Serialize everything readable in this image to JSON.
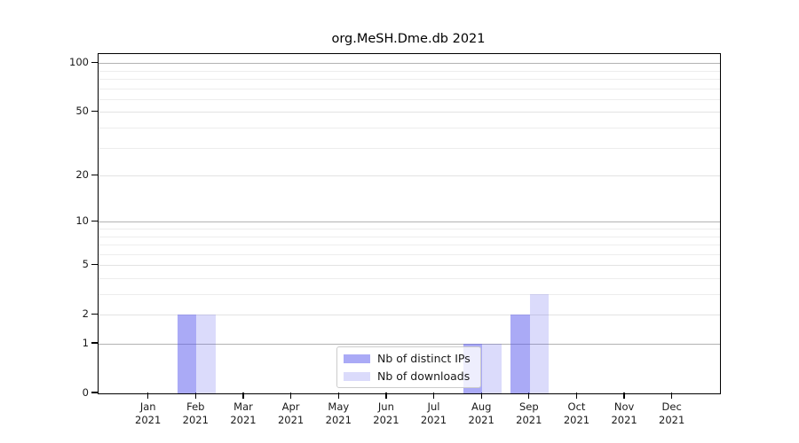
{
  "figure": {
    "background": "#ffffff"
  },
  "chart_data": {
    "type": "bar",
    "title": "org.MeSH.Dme.db 2021",
    "year_label": "2021",
    "categories": [
      "Jan",
      "Feb",
      "Mar",
      "Apr",
      "May",
      "Jun",
      "Jul",
      "Aug",
      "Sep",
      "Oct",
      "Nov",
      "Dec"
    ],
    "series": [
      {
        "name": "Nb of distinct IPs",
        "fill": "rgba(85,85,238,0.50)",
        "solid_color": "#aaaaf6",
        "values": [
          0,
          2,
          0,
          0,
          0,
          0,
          0,
          1,
          2,
          0,
          0,
          0
        ]
      },
      {
        "name": "Nb of downloads",
        "fill": "rgba(85,85,238,0.21)",
        "solid_color": "#dbdbfb",
        "values": [
          0,
          2,
          0,
          0,
          0,
          0,
          0,
          1,
          3,
          0,
          0,
          0
        ]
      }
    ],
    "y_axis": {
      "scale": "log10(1+value)",
      "ticks": [
        0,
        1,
        2,
        5,
        10,
        20,
        50,
        100
      ],
      "ylim": [
        0,
        113
      ]
    },
    "x_axis": {
      "tick_line1": [
        "Jan",
        "Feb",
        "Mar",
        "Apr",
        "May",
        "Jun",
        "Jul",
        "Aug",
        "Sep",
        "Oct",
        "Nov",
        "Dec"
      ],
      "tick_line2": "2021"
    },
    "grid": {
      "major": [
        1,
        10,
        100
      ],
      "mid": [
        2,
        5,
        20,
        50
      ],
      "minor": [
        3,
        4,
        6,
        7,
        8,
        9,
        30,
        40,
        60,
        70,
        80,
        90
      ],
      "major_color": "#b3b3b3",
      "mid_color": "#e3e3e3",
      "minor_color": "#ededed"
    },
    "legend": {
      "position": "lower-center"
    }
  }
}
